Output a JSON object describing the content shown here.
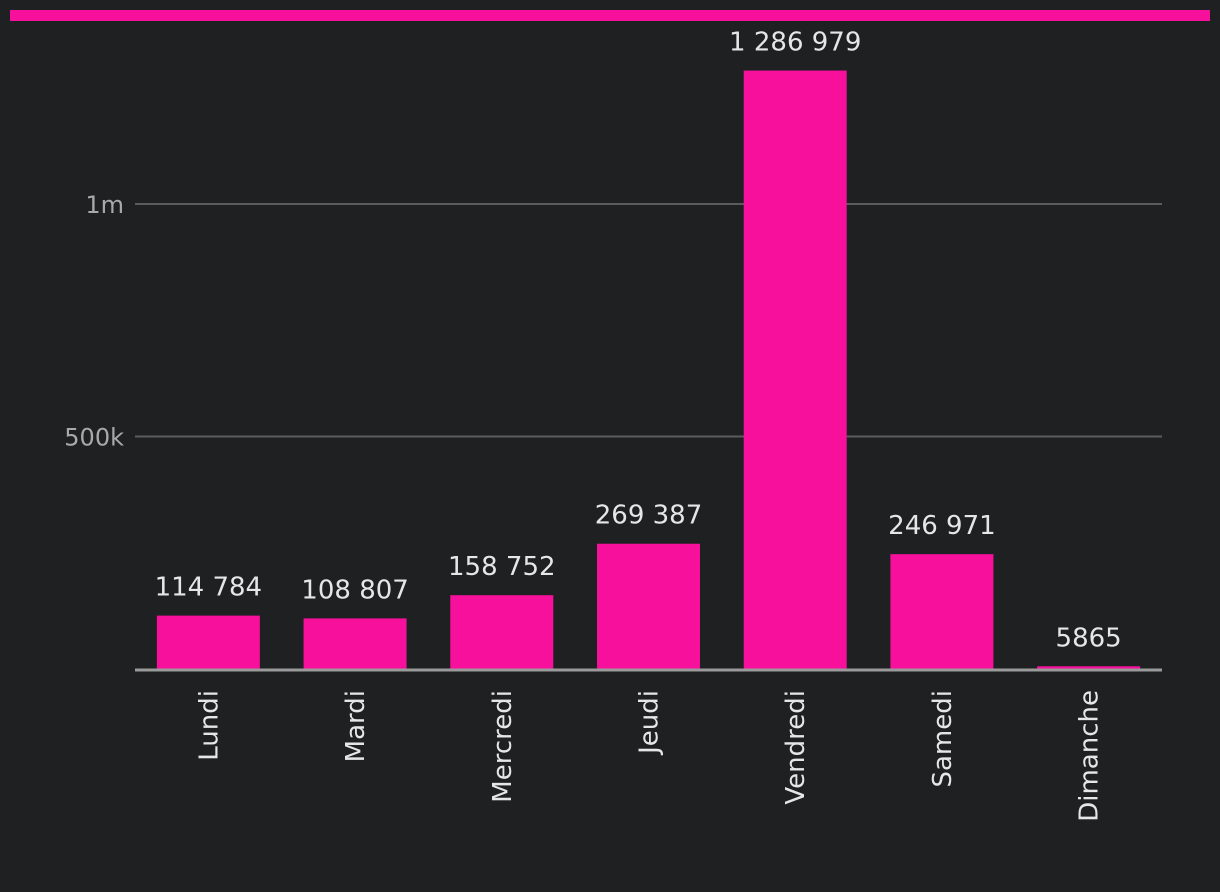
{
  "chart_data": {
    "type": "bar",
    "categories": [
      "Lundi",
      "Mardi",
      "Mercredi",
      "Jeudi",
      "Vendredi",
      "Samedi",
      "Dimanche"
    ],
    "values": [
      114784,
      108807,
      158752,
      269387,
      1286979,
      246971,
      5865
    ],
    "value_labels": [
      "114 784",
      "108 807",
      "158 752",
      "269 387",
      "1 286 979",
      "246 971",
      "5865"
    ],
    "yticks": [
      {
        "value": 500000,
        "label": "500k"
      },
      {
        "value": 1000000,
        "label": "1m"
      }
    ],
    "ylim": [
      0,
      1400000
    ],
    "grid": true,
    "bar_color": "#f7109b",
    "background": "#1f2022",
    "title": "",
    "xlabel": "",
    "ylabel": ""
  }
}
